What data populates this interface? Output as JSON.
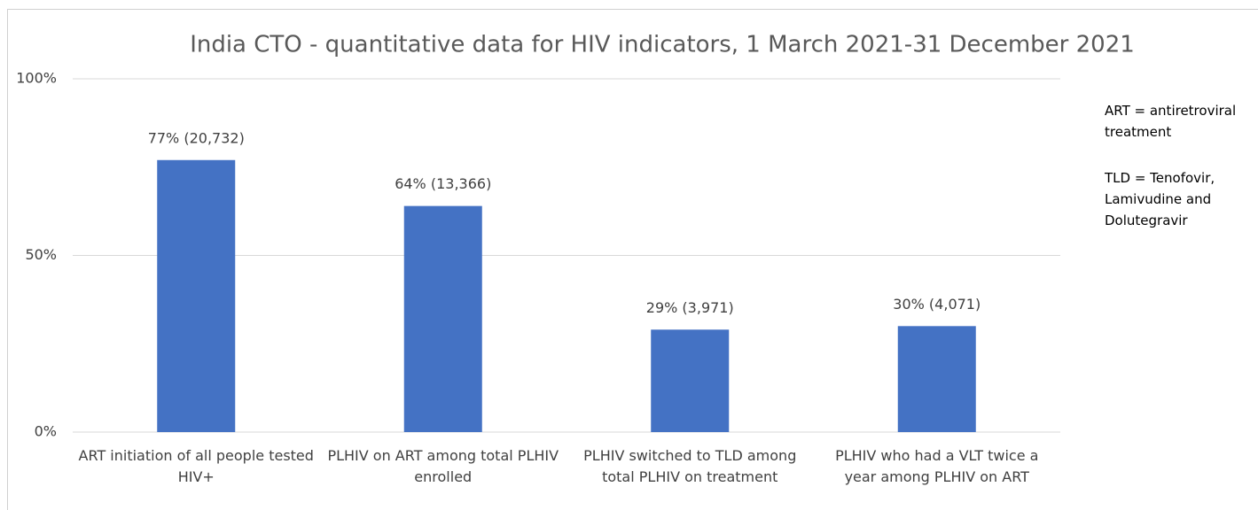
{
  "chart_data": {
    "type": "bar",
    "title": "India CTO - quantitative data for HIV indicators, 1 March 2021-31 December 2021",
    "categories": [
      "ART initiation of all people tested HIV+",
      "PLHIV on ART among total PLHIV enrolled",
      "PLHIV switched to TLD among total PLHIV on treatment",
      "PLHIV who had a VLT twice a year among PLHIV on ART"
    ],
    "values": [
      77,
      64,
      29,
      30
    ],
    "value_labels": [
      "77% (20,732)",
      "64% (13,366)",
      "29% (3,971)",
      "30% (4,071)"
    ],
    "color": "#4472c4",
    "ylim": [
      0,
      100
    ],
    "yticks": [
      {
        "value": 0,
        "label": "0%"
      },
      {
        "value": 50,
        "label": "50%"
      },
      {
        "value": 100,
        "label": "100%"
      }
    ],
    "grid": true,
    "annotations": [
      "ART = antiretroviral treatment",
      "TLD = Tenofovir, Lamivudine and Dolutegravir"
    ]
  }
}
